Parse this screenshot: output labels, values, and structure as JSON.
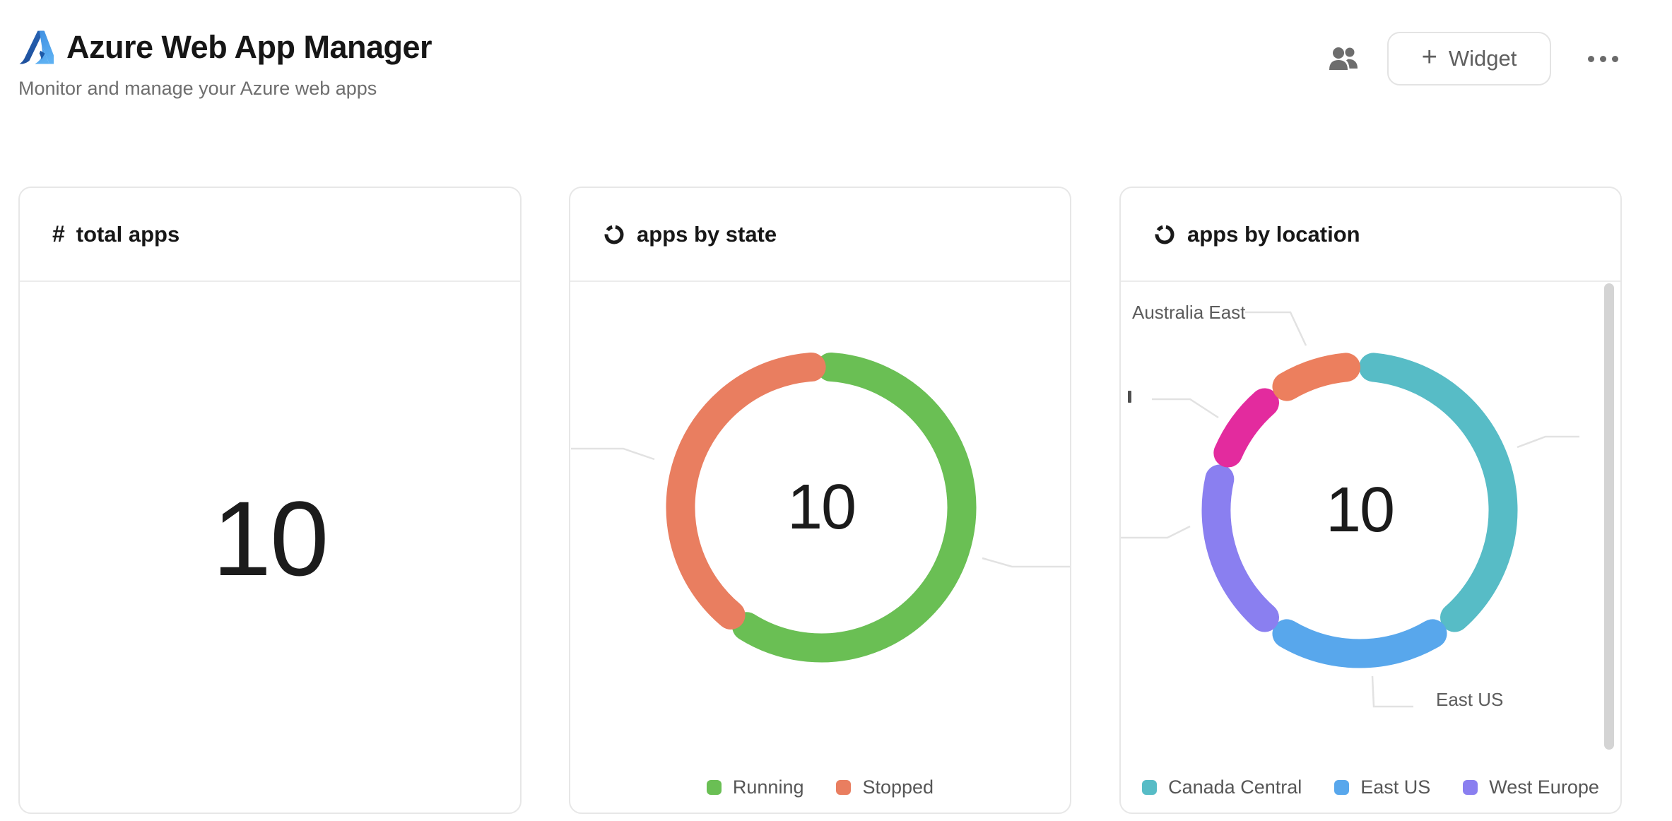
{
  "header": {
    "title": "Azure Web App Manager",
    "subtitle": "Monitor and manage your Azure web apps",
    "widget_button": {
      "plus": "+",
      "label": "Widget"
    }
  },
  "cards": {
    "total_apps": {
      "title": "total apps",
      "icon": "hash-icon",
      "value": "10"
    },
    "apps_by_state": {
      "title": "apps by state",
      "icon": "donut-chart-icon"
    },
    "apps_by_location": {
      "title": "apps by location",
      "icon": "donut-chart-icon"
    }
  },
  "colors": {
    "running_green": "#6abf54",
    "stopped_salmon": "#e97e60",
    "canada_central_teal": "#57bcc6",
    "east_us_blue": "#58a7ec",
    "west_europe_purple": "#8a7ff0",
    "magenta": "#e32b9e",
    "australia_east_orange": "#ec7f5e",
    "leader_line": "#e2e2e2",
    "card_border": "#e7e7e7"
  },
  "chart_data": [
    {
      "type": "pie",
      "title": "apps by state",
      "total_label": "10",
      "legend_position": "bottom",
      "segments": [
        {
          "label": "Running",
          "value": 6,
          "color": "#6abf54",
          "start_deg": 0,
          "end_deg": 216
        },
        {
          "label": "Stopped",
          "value": 4,
          "color": "#e97e60",
          "start_deg": 216,
          "end_deg": 360
        }
      ]
    },
    {
      "type": "pie",
      "title": "apps by location",
      "total_label": "10",
      "legend_position": "bottom",
      "segments": [
        {
          "label": "Canada Central",
          "value": 4,
          "color": "#57bcc6",
          "start_deg": 0,
          "end_deg": 144,
          "callout": "leader-line-only-clipped-right"
        },
        {
          "label": "East US",
          "value": 2,
          "color": "#58a7ec",
          "start_deg": 144,
          "end_deg": 216,
          "callout": "visible"
        },
        {
          "label": "West Europe",
          "value": 2,
          "color": "#8a7ff0",
          "start_deg": 216,
          "end_deg": 288,
          "callout": "leader-line-only-clipped-left"
        },
        {
          "label": "",
          "value": 1,
          "color": "#e32b9e",
          "start_deg": 288,
          "end_deg": 324,
          "callout": "label-clipped-at-left-edge"
        },
        {
          "label": "Australia East",
          "value": 1,
          "color": "#ec7f5e",
          "start_deg": 324,
          "end_deg": 360,
          "callout": "visible"
        }
      ]
    }
  ]
}
